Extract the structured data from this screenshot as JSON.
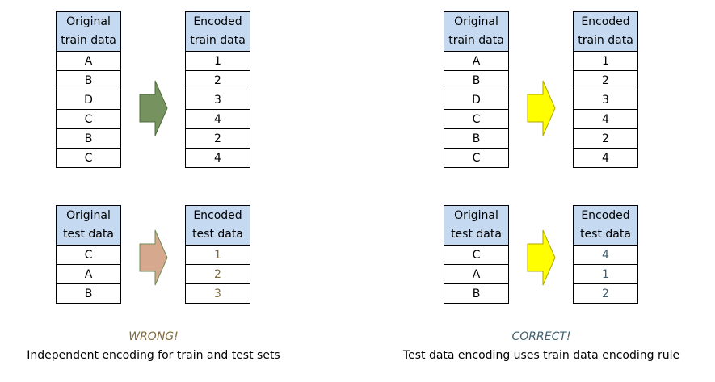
{
  "colors": {
    "header_fill": "#c5d9f1",
    "arrow_wrong_train": "#76935f",
    "arrow_wrong_test": "#d6a98f",
    "arrow_correct": "#ffff00",
    "wrong_text": "#7f6a3f",
    "correct_text": "#41606f"
  },
  "wrong": {
    "train": {
      "original": {
        "header": [
          "Original",
          "train data"
        ],
        "rows": [
          "A",
          "B",
          "D",
          "C",
          "B",
          "C"
        ]
      },
      "encoded": {
        "header": [
          "Encoded",
          "train data"
        ],
        "rows": [
          "1",
          "2",
          "3",
          "4",
          "2",
          "4"
        ]
      }
    },
    "test": {
      "original": {
        "header": [
          "Original",
          "test data"
        ],
        "rows": [
          "C",
          "A",
          "B"
        ]
      },
      "encoded": {
        "header": [
          "Encoded",
          "test data"
        ],
        "rows": [
          "1",
          "2",
          "3"
        ]
      }
    },
    "verdict": "WRONG!",
    "description": "Independent encoding for train and test sets"
  },
  "correct": {
    "train": {
      "original": {
        "header": [
          "Original",
          "train data"
        ],
        "rows": [
          "A",
          "B",
          "D",
          "C",
          "B",
          "C"
        ]
      },
      "encoded": {
        "header": [
          "Encoded",
          "train data"
        ],
        "rows": [
          "1",
          "2",
          "3",
          "4",
          "2",
          "4"
        ]
      }
    },
    "test": {
      "original": {
        "header": [
          "Original",
          "test data"
        ],
        "rows": [
          "C",
          "A",
          "B"
        ]
      },
      "encoded": {
        "header": [
          "Encoded",
          "test data"
        ],
        "rows": [
          "4",
          "1",
          "2"
        ]
      }
    },
    "verdict": "CORRECT!",
    "description": "Test data encoding uses train data encoding rule"
  }
}
